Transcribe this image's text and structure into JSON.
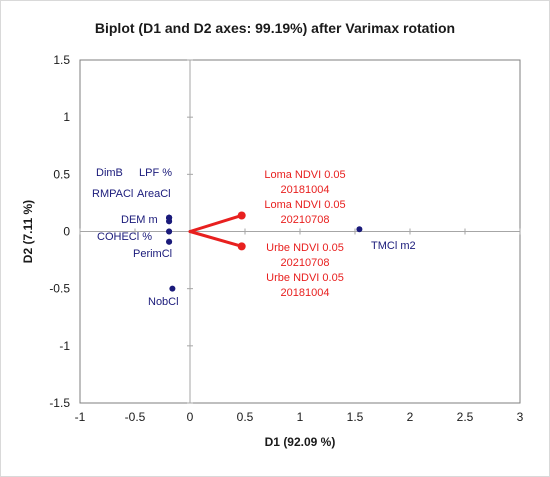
{
  "chart_data": {
    "type": "scatter",
    "title": "Biplot (D1 and D2 axes: 99.19%) after Varimax rotation",
    "xlabel": "D1 (92.09 %)",
    "ylabel": "D2 (7.11 %)",
    "xlim": [
      -1,
      3
    ],
    "ylim": [
      -1.5,
      1.5
    ],
    "xticks": [
      -1,
      -0.5,
      0,
      0.5,
      1,
      1.5,
      2,
      2.5,
      3
    ],
    "yticks": [
      -1.5,
      -1,
      -0.5,
      0,
      0.5,
      1,
      1.5
    ],
    "xtick_labels": [
      "-1",
      "-0.5",
      "0",
      "0.5",
      "1",
      "1.5",
      "2",
      "2.5",
      "3"
    ],
    "ytick_labels": [
      "-1.5",
      "-1",
      "-0.5",
      "0",
      "0.5",
      "1",
      "1.5"
    ],
    "grid": false,
    "colors": {
      "observations": "#1a1a7a",
      "variables": "#e8201f",
      "axis": "#a6a6a6"
    },
    "observations": [
      {
        "label": "DimB",
        "x": -0.19,
        "y": 0.12
      },
      {
        "label": "LPF %",
        "x": -0.19,
        "y": 0.12
      },
      {
        "label": "RMPACl",
        "x": -0.19,
        "y": 0.12
      },
      {
        "label": "AreaCl",
        "x": -0.19,
        "y": 0.12
      },
      {
        "label": "DEM m",
        "x": -0.19,
        "y": 0.09
      },
      {
        "label": "COHECl %",
        "x": -0.19,
        "y": 0.0
      },
      {
        "label": "PerimCl",
        "x": -0.19,
        "y": -0.09
      },
      {
        "label": "NobCl",
        "x": -0.16,
        "y": -0.5
      },
      {
        "label": "TMCl m2",
        "x": 1.54,
        "y": 0.02
      }
    ],
    "variables": [
      {
        "label_lines": [
          "Loma NDVI 0.05",
          "20181004",
          "Loma NDVI 0.05",
          "20210708"
        ],
        "x": 0.47,
        "y": 0.14
      },
      {
        "label_lines": [
          "Urbe NDVI 0.05",
          "20210708",
          "Urbe NDVI 0.05",
          "20181004"
        ],
        "x": 0.47,
        "y": -0.13
      }
    ]
  }
}
